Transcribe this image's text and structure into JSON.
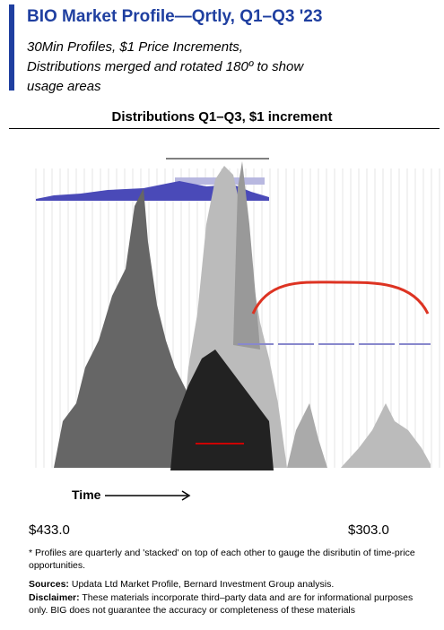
{
  "header": {
    "title": "BIO Market Profile—Qrtly, Q1–Q3 '23",
    "subtitle": [
      "30Min Profiles, $1 Price Increments,",
      "Distributions merged and rotated 180º to show",
      "usage areas"
    ]
  },
  "figure": {
    "title": "Distributions Q1–Q3, $1 increment",
    "time_label": "Time",
    "price_left": "$433.0",
    "price_right": "$303.0"
  },
  "notes": {
    "footnote": "* Profiles are quarterly and 'stacked' on top of each other to gauge the disributin of time-price opportunities.",
    "sources_label": "Sources:",
    "sources": "Updata Ltd Market Profile, Bernard Investment Group analysis.",
    "disclaimer_label": "Disclaimer:",
    "disclaimer": "These materials incorporate third–party data and are for informational purposes only. BIG does not guarantee the accuracy or completeness of these materials"
  }
}
